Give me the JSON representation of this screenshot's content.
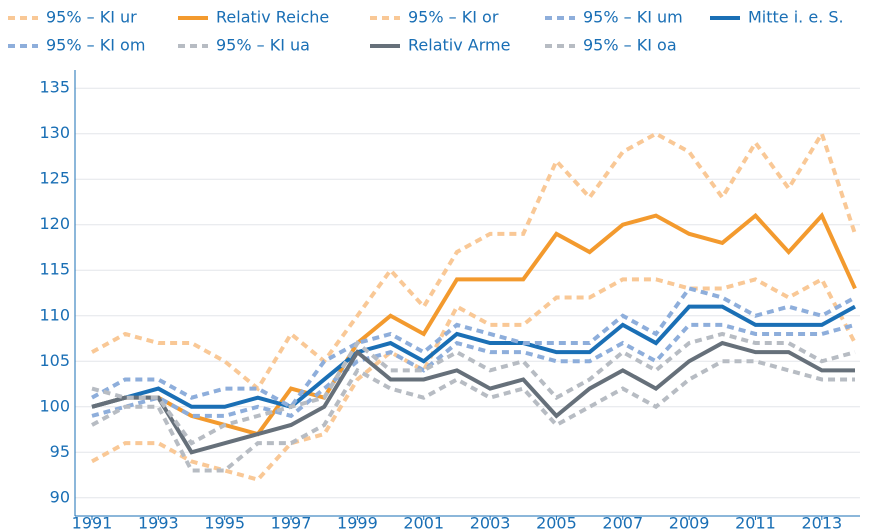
{
  "chart_data": {
    "type": "line",
    "x": [
      1991,
      1992,
      1993,
      1994,
      1995,
      1996,
      1997,
      1998,
      1999,
      2000,
      2001,
      2002,
      2003,
      2004,
      2005,
      2006,
      2007,
      2008,
      2009,
      2010,
      2011,
      2012,
      2013,
      2014
    ],
    "xlim": [
      1991,
      2014
    ],
    "xticks": [
      1991,
      1993,
      1995,
      1997,
      1999,
      2001,
      2003,
      2005,
      2007,
      2009,
      2011,
      2013
    ],
    "ylim": [
      88,
      137
    ],
    "yticks": [
      90,
      95,
      100,
      105,
      110,
      115,
      120,
      125,
      130,
      135
    ],
    "grid": true,
    "series": [
      {
        "name": "95% – KI ur",
        "color": "#f9c896",
        "dashed": true,
        "values": [
          94,
          96,
          96,
          94,
          93,
          92,
          96,
          97,
          103,
          106,
          104,
          111,
          109,
          109,
          112,
          112,
          114,
          114,
          113,
          113,
          114,
          112,
          114,
          107
        ]
      },
      {
        "name": "Relativ Reiche",
        "color": "#f39a2e",
        "dashed": false,
        "values": [
          100,
          101,
          101,
          99,
          98,
          97,
          102,
          101,
          107,
          110,
          108,
          114,
          114,
          114,
          119,
          117,
          120,
          121,
          119,
          118,
          121,
          117,
          121,
          113
        ]
      },
      {
        "name": "95% – KI or",
        "color": "#f9c896",
        "dashed": true,
        "values": [
          106,
          108,
          107,
          107,
          105,
          102,
          108,
          105,
          110,
          115,
          111,
          117,
          119,
          119,
          127,
          123,
          128,
          130,
          128,
          123,
          129,
          124,
          130,
          119
        ]
      },
      {
        "name": "95% – KI um",
        "color": "#8eaedb",
        "dashed": true,
        "values": [
          99,
          100,
          101,
          99,
          99,
          100,
          99,
          102,
          105,
          106,
          104,
          107,
          106,
          106,
          105,
          105,
          107,
          105,
          109,
          109,
          108,
          108,
          108,
          109
        ]
      },
      {
        "name": "Mitte i. e. S.",
        "color": "#1a6fb5",
        "dashed": false,
        "values": [
          100,
          101,
          102,
          100,
          100,
          101,
          100,
          103,
          106,
          107,
          105,
          108,
          107,
          107,
          106,
          106,
          109,
          107,
          111,
          111,
          109,
          109,
          109,
          111
        ]
      },
      {
        "name": "95% – KI om",
        "color": "#8eaedb",
        "dashed": true,
        "values": [
          101,
          103,
          103,
          101,
          102,
          102,
          100,
          105,
          107,
          108,
          106,
          109,
          108,
          107,
          107,
          107,
          110,
          108,
          113,
          112,
          110,
          111,
          110,
          112
        ]
      },
      {
        "name": "95% – KI ua",
        "color": "#b7bcc3",
        "dashed": true,
        "values": [
          98,
          100,
          100,
          93,
          93,
          96,
          96,
          98,
          104,
          102,
          101,
          103,
          101,
          102,
          98,
          100,
          102,
          100,
          103,
          105,
          105,
          104,
          103,
          103
        ]
      },
      {
        "name": "Relativ Arme",
        "color": "#66707a",
        "dashed": false,
        "values": [
          100,
          101,
          101,
          95,
          96,
          97,
          98,
          100,
          106,
          103,
          103,
          104,
          102,
          103,
          99,
          102,
          104,
          102,
          105,
          107,
          106,
          106,
          104,
          104
        ]
      },
      {
        "name": "95% – KI oa",
        "color": "#b7bcc3",
        "dashed": true,
        "values": [
          102,
          101,
          101,
          96,
          98,
          99,
          100,
          101,
          107,
          104,
          104,
          106,
          104,
          105,
          101,
          103,
          106,
          104,
          107,
          108,
          107,
          107,
          105,
          106
        ]
      }
    ]
  }
}
